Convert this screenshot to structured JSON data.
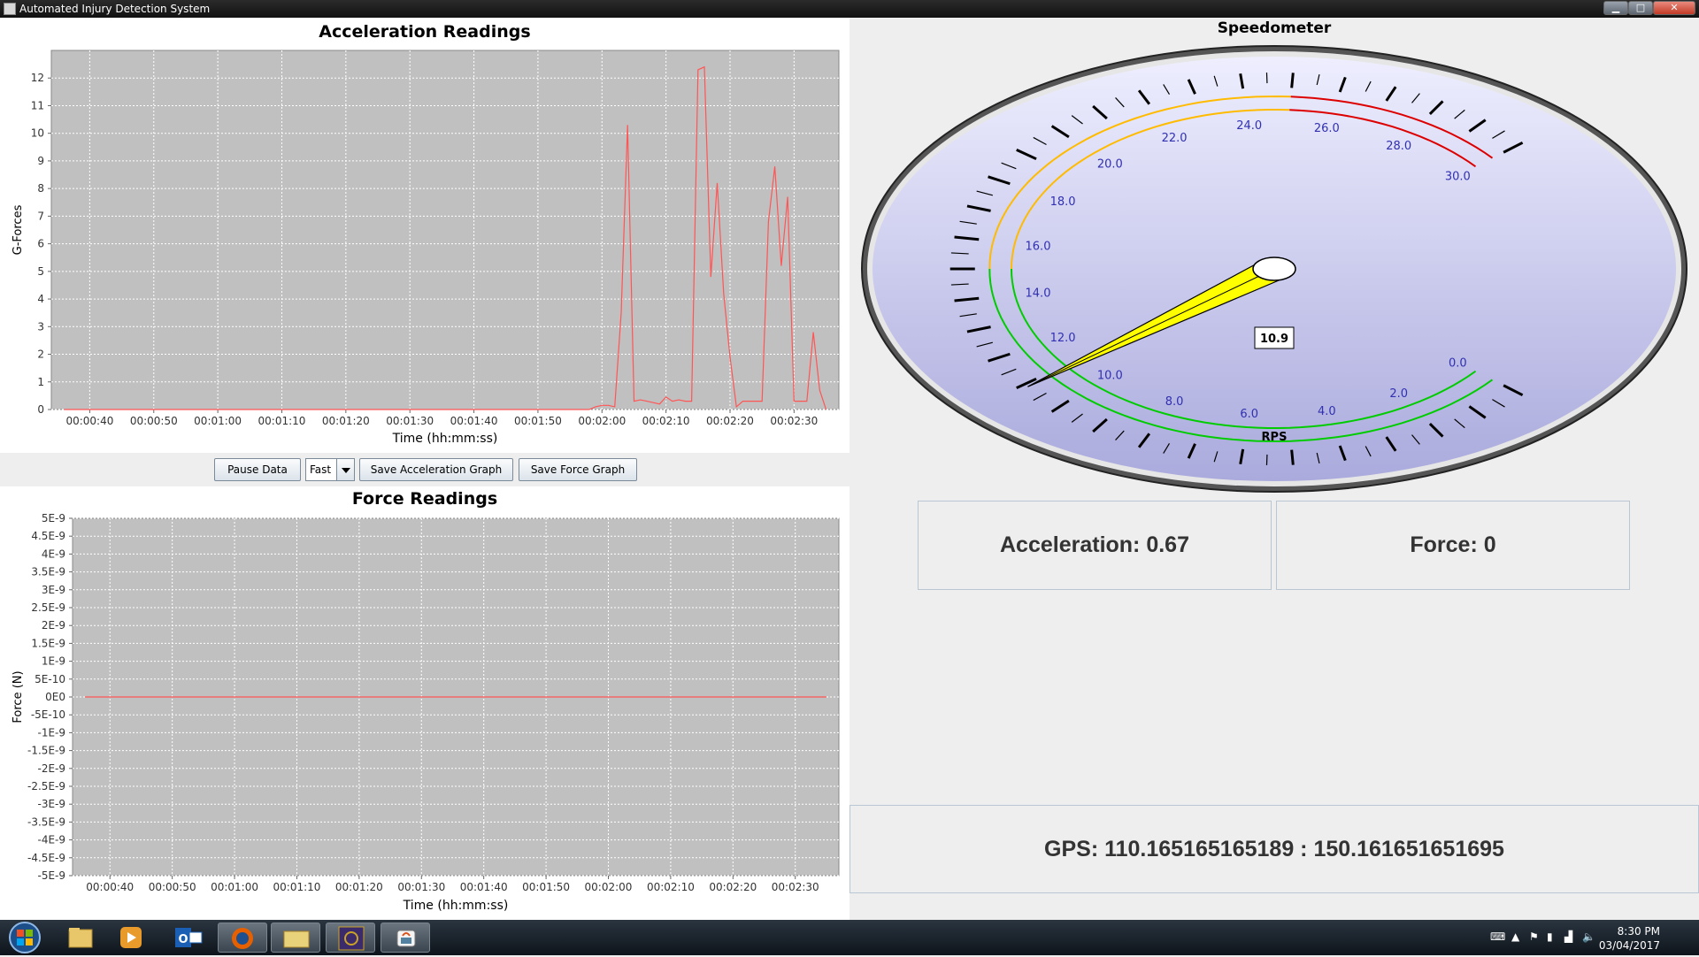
{
  "window": {
    "title": "Automated Injury Detection System"
  },
  "controls": {
    "pause_label": "Pause Data",
    "speed_value": "Fast",
    "save_acc_label": "Save Acceleration Graph",
    "save_force_label": "Save Force Graph"
  },
  "speedometer": {
    "title": "Speedometer",
    "unit": "RPS",
    "value": 10.9,
    "value_text": "10.9",
    "min": 0,
    "max": 30,
    "tick_labels": [
      "0.0",
      "2.0",
      "4.0",
      "6.0",
      "8.0",
      "10.0",
      "12.0",
      "14.0",
      "16.0",
      "18.0",
      "20.0",
      "22.0",
      "24.0",
      "26.0",
      "28.0",
      "30.0"
    ],
    "ranges": [
      {
        "from": 0,
        "to": 15,
        "color": "#00cc00"
      },
      {
        "from": 15,
        "to": 25,
        "color": "#ffbb00"
      },
      {
        "from": 25,
        "to": 30,
        "color": "#dd0000"
      }
    ],
    "needle_color": "#ffff00",
    "dial_colors": [
      "#eeeeff",
      "#aaaadd"
    ]
  },
  "readouts": {
    "acceleration": "Acceleration: 0.67",
    "force": "Force: 0",
    "gps": "GPS: 110.165165165189 : 150.161651651695"
  },
  "taskbar": {
    "time": "8:30 PM",
    "date": "03/04/2017",
    "apps": [
      "windows-media-player-icon",
      "outlook-icon",
      "firefox-icon",
      "windows-explorer-icon",
      "java-ee-ide-icon",
      "java-icon"
    ]
  },
  "chart_data": [
    {
      "type": "line",
      "title": "Acceleration Readings",
      "xlabel": "Time (hh:mm:ss)",
      "ylabel": "G-Forces",
      "x_tick_labels": [
        "00:00:40",
        "00:00:50",
        "00:01:00",
        "00:01:10",
        "00:01:20",
        "00:01:30",
        "00:01:40",
        "00:01:50",
        "00:02:00",
        "00:02:10",
        "00:02:20",
        "00:02:30"
      ],
      "xlim": [
        34,
        157
      ],
      "ylim": [
        0,
        13
      ],
      "y_ticks": [
        0,
        1,
        2,
        3,
        4,
        5,
        6,
        7,
        8,
        9,
        10,
        11,
        12
      ],
      "grid": true,
      "line_color": "#ff5555",
      "plot_background": "#c0c0c0",
      "x": [
        36,
        118,
        119,
        120,
        121,
        122,
        123,
        124,
        125,
        126,
        127,
        128,
        129,
        130,
        131,
        132,
        133,
        134,
        135,
        136,
        137,
        138,
        139,
        140,
        141,
        142,
        143,
        144,
        145,
        146,
        147,
        148,
        149,
        150,
        151,
        152,
        153,
        154,
        155
      ],
      "values": [
        0,
        0,
        0.1,
        0.15,
        0.15,
        0.1,
        3.5,
        10.3,
        0.3,
        0.35,
        0.3,
        0.25,
        0.2,
        0.45,
        0.3,
        0.35,
        0.3,
        0.3,
        12.3,
        12.4,
        4.8,
        8.2,
        4.2,
        1.9,
        0.1,
        0.3,
        0.3,
        0.3,
        0.3,
        6.8,
        8.8,
        5.2,
        7.7,
        0.3,
        0.3,
        0.3,
        2.8,
        0.7,
        0
      ]
    },
    {
      "type": "line",
      "title": "Force Readings",
      "xlabel": "Time (hh:mm:ss)",
      "ylabel": "Force (N)",
      "x_tick_labels": [
        "00:00:40",
        "00:00:50",
        "00:01:00",
        "00:01:10",
        "00:01:20",
        "00:01:30",
        "00:01:40",
        "00:01:50",
        "00:02:00",
        "00:02:10",
        "00:02:20",
        "00:02:30"
      ],
      "xlim": [
        34,
        157
      ],
      "ylim": [
        -5e-09,
        5e-09
      ],
      "y_tick_labels": [
        "5E-9",
        "4.5E-9",
        "4E-9",
        "3.5E-9",
        "3E-9",
        "2.5E-9",
        "2E-9",
        "1.5E-9",
        "1E-9",
        "5E-10",
        "0E0",
        "-5E-10",
        "-1E-9",
        "-1.5E-9",
        "-2E-9",
        "-2.5E-9",
        "-3E-9",
        "-3.5E-9",
        "-4E-9",
        "-4.5E-9",
        "-5E-9"
      ],
      "grid": true,
      "line_color": "#ff5555",
      "plot_background": "#c0c0c0",
      "x": [
        36,
        155
      ],
      "values": [
        0,
        0
      ]
    }
  ]
}
